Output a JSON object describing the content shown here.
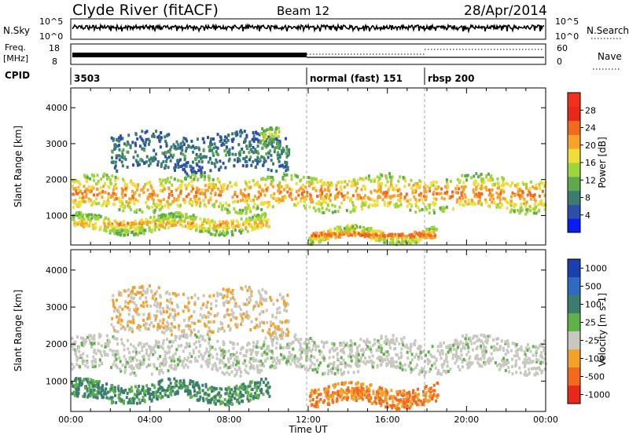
{
  "header": {
    "station": "Clyde River (fitACF)",
    "beam": "Beam 12",
    "date": "28/Apr/2014"
  },
  "status_panels": {
    "nsky": {
      "label": "N.Sky",
      "ticks": [
        "10^5",
        "10^0"
      ]
    },
    "nsearch": {
      "label": "N.Search",
      "ticks": [
        "10^5",
        "10^0"
      ]
    },
    "freq": {
      "label_line1": "Freq.",
      "label_line2": "[MHz]",
      "ticks": [
        "18",
        "8"
      ]
    },
    "nave": {
      "label": "Nave",
      "ticks": [
        "60",
        "0"
      ]
    },
    "cpid": {
      "label": "CPID",
      "modes": [
        {
          "start_hour": 0,
          "text": "3503"
        },
        {
          "start_hour": 12,
          "text": "normal (fast) 151"
        },
        {
          "start_hour": 18,
          "text": "rbsp 200"
        }
      ]
    }
  },
  "chart_data": [
    {
      "type": "heatmap",
      "title": "",
      "xlabel": "Time UT",
      "ylabel": "Slant Range [km]",
      "xlim": [
        0,
        24
      ],
      "ylim": [
        180,
        4550
      ],
      "x_tick_labels": [
        "00:00",
        "04:00",
        "08:00",
        "12:00",
        "16:00",
        "20:00",
        "00:00"
      ],
      "x_tick_hours": [
        0,
        4,
        8,
        12,
        16,
        20,
        24
      ],
      "y_ticks": [
        1000,
        2000,
        3000,
        4000
      ],
      "mode_change_hours": [
        12,
        18
      ],
      "colorbar": {
        "label": "Power [dB]",
        "range": [
          0,
          32
        ],
        "ticks": [
          4,
          8,
          12,
          16,
          20,
          24,
          28
        ],
        "colors": [
          "#0a1cf5",
          "#2c4fa8",
          "#3a7d70",
          "#5ea84d",
          "#9ed53c",
          "#f0dc3a",
          "#f7a32a",
          "#f26a1e",
          "#e8281a",
          "#f2311c"
        ]
      },
      "bands": [
        {
          "range_km": [
            1200,
            2100
          ],
          "hours": [
            0,
            24
          ],
          "level": "high",
          "value": 24
        },
        {
          "range_km": [
            600,
            1000
          ],
          "hours": [
            0,
            10
          ],
          "level": "high",
          "value": 22
        },
        {
          "range_km": [
            350,
            650
          ],
          "hours": [
            12,
            18.5
          ],
          "level": "high",
          "value": 26
        },
        {
          "range_km": [
            2300,
            3300
          ],
          "hours": [
            2,
            11
          ],
          "level": "low",
          "value": 8
        },
        {
          "range_km": [
            3000,
            3600
          ],
          "hours": [
            9.5,
            10.5
          ],
          "level": "mid",
          "value": 16
        }
      ]
    },
    {
      "type": "heatmap",
      "title": "",
      "xlabel": "Time UT",
      "ylabel": "Slant Range [km]",
      "xlim": [
        0,
        24
      ],
      "ylim": [
        180,
        4550
      ],
      "x_tick_labels": [
        "00:00",
        "04:00",
        "08:00",
        "12:00",
        "16:00",
        "20:00",
        "00:00"
      ],
      "x_tick_hours": [
        0,
        4,
        8,
        12,
        16,
        20,
        24
      ],
      "y_ticks": [
        1000,
        2000,
        3000,
        4000
      ],
      "mode_change_hours": [
        12,
        18
      ],
      "colorbar": {
        "label": "Velocity [m s-1]",
        "tick_labels": [
          "1000",
          "500",
          "100",
          "25",
          "-25",
          "-100",
          "-500",
          "-1000"
        ],
        "colors": [
          "#1a3fb0",
          "#2f6ac2",
          "#3a7d70",
          "#5fb24a",
          "#c8c8c0",
          "#f2a22a",
          "#f26a1e",
          "#e8281a"
        ]
      },
      "bands": [
        {
          "range_km": [
            1300,
            2200
          ],
          "hours": [
            0,
            24
          ],
          "velocity": "-25..25 (ground scatter)"
        },
        {
          "range_km": [
            500,
            1000
          ],
          "hours": [
            0,
            10
          ],
          "velocity": "100..500"
        },
        {
          "range_km": [
            400,
            900
          ],
          "hours": [
            12,
            18.5
          ],
          "velocity": "-100..-500"
        },
        {
          "range_km": [
            2300,
            3500
          ],
          "hours": [
            2,
            11
          ],
          "velocity": "-25..25"
        }
      ]
    }
  ]
}
